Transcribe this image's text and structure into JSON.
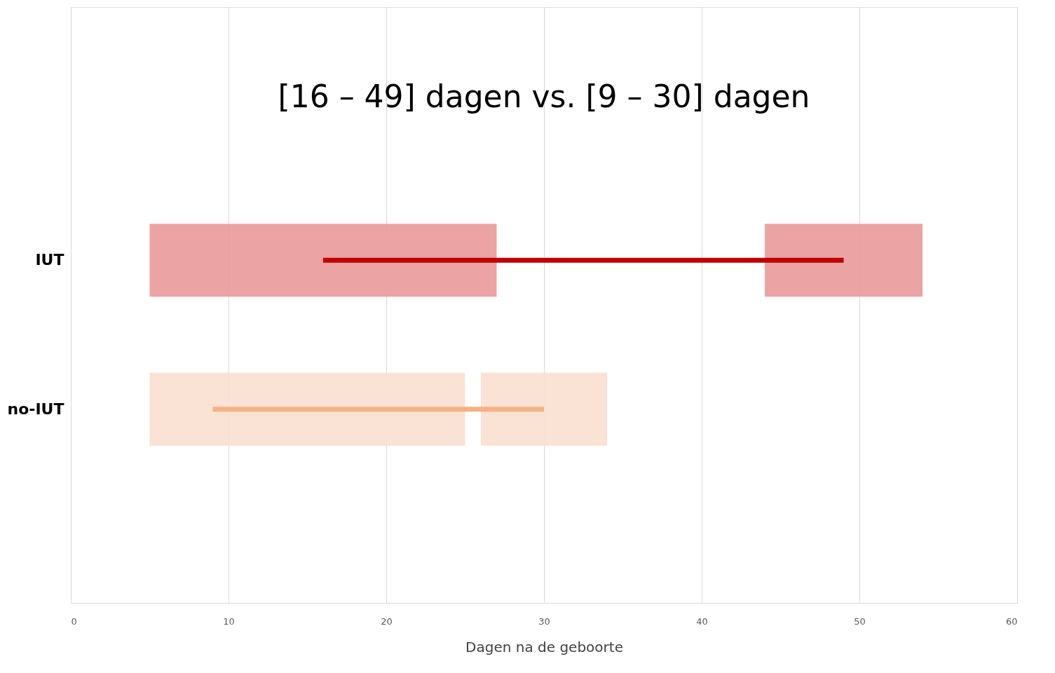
{
  "chart_data": {
    "type": "bar",
    "orientation": "horizontal",
    "categories": [
      "IUT",
      "no-IUT"
    ],
    "series": [
      {
        "type": "bar",
        "colors": [
          "#ea9999",
          "#fadfcf"
        ],
        "base": [
          5,
          5
        ],
        "values": [
          22,
          20
        ]
      },
      {
        "type": "bar",
        "colors": [
          "#ea9999",
          "#fadfcf"
        ],
        "base": [
          44,
          26
        ],
        "values": [
          10,
          8
        ]
      },
      {
        "type": "bar",
        "colors": [
          "#c00000",
          "#f4b183"
        ],
        "base": [
          16,
          9
        ],
        "values": [
          33,
          21
        ]
      }
    ],
    "xlabel": "Dagen na de geboorte",
    "xlim": [
      0,
      60
    ],
    "xticks": [
      0,
      10,
      20,
      30,
      40,
      50,
      60
    ],
    "grid": "x",
    "annotations": [
      "[16 – 49] dagen vs. [9 – 30] dagen"
    ]
  }
}
